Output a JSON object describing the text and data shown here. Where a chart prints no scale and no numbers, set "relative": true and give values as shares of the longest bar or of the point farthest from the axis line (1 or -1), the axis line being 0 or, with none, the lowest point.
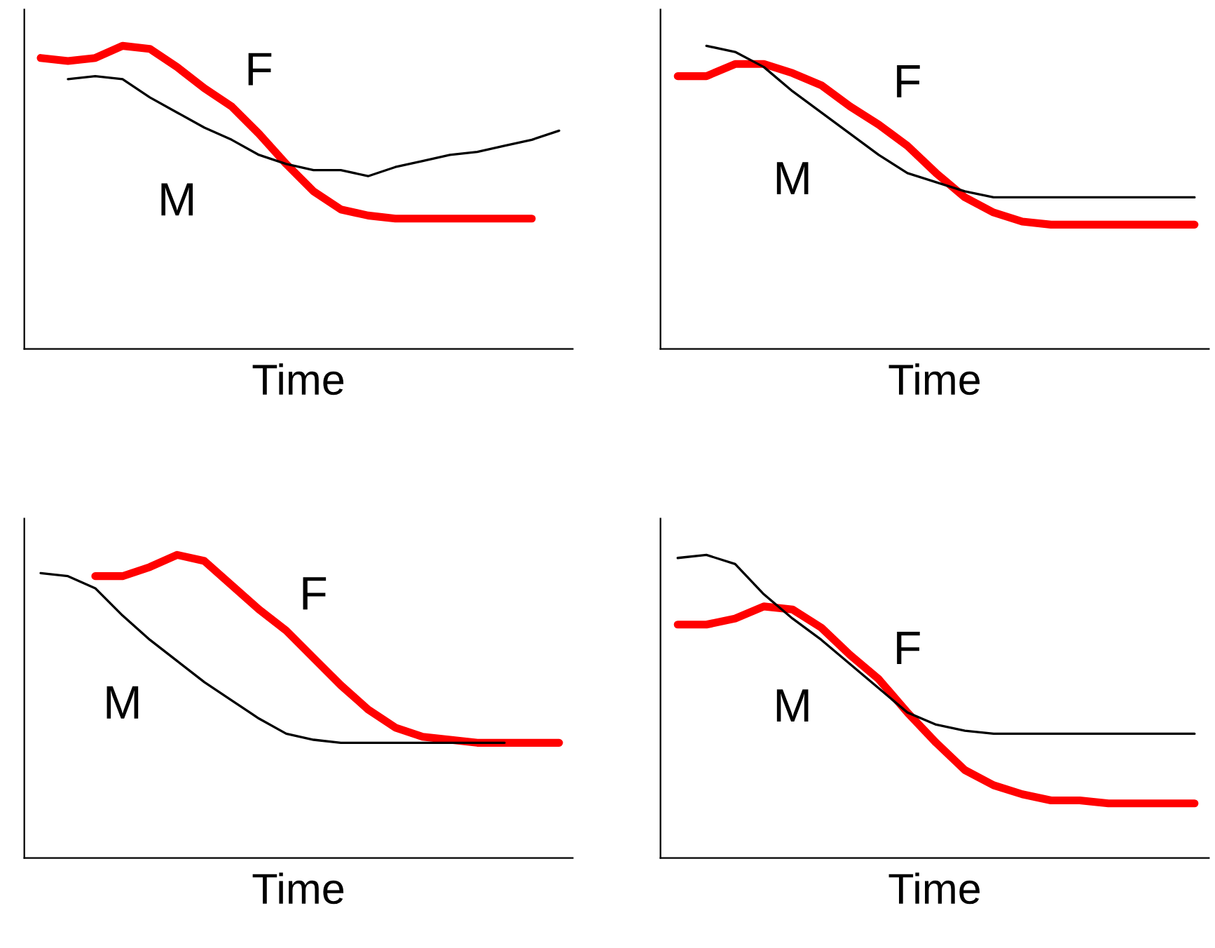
{
  "chart_data": [
    {
      "type": "line",
      "relative": true,
      "xlabel": "Time",
      "categories": [
        null,
        null,
        null,
        null,
        null,
        null,
        null,
        null,
        null,
        null,
        null,
        null,
        null,
        null,
        null,
        null,
        null,
        null,
        null,
        null
      ],
      "series": [
        {
          "name": "F",
          "color": "#ff0000",
          "values": [
            0.96,
            0.95,
            0.96,
            1.0,
            0.99,
            0.93,
            0.86,
            0.8,
            0.71,
            0.61,
            0.52,
            0.46,
            0.44,
            0.43,
            0.43,
            0.43,
            0.43,
            0.43,
            0.43,
            null
          ]
        },
        {
          "name": "M",
          "color": "#000000",
          "values": [
            null,
            0.89,
            0.9,
            0.89,
            0.83,
            0.78,
            0.73,
            0.69,
            0.64,
            0.61,
            0.59,
            0.59,
            0.57,
            0.6,
            0.62,
            0.64,
            0.65,
            0.67,
            0.69,
            0.72
          ]
        }
      ]
    },
    {
      "type": "line",
      "relative": true,
      "xlabel": "Time",
      "categories": [
        null,
        null,
        null,
        null,
        null,
        null,
        null,
        null,
        null,
        null,
        null,
        null,
        null,
        null,
        null,
        null,
        null,
        null,
        null
      ],
      "series": [
        {
          "name": "F",
          "color": "#ff0000",
          "values": [
            0.9,
            0.9,
            0.94,
            0.94,
            0.91,
            0.87,
            0.8,
            0.74,
            0.67,
            0.58,
            0.5,
            0.45,
            0.42,
            0.41,
            0.41,
            0.41,
            0.41,
            0.41,
            0.41
          ]
        },
        {
          "name": "M",
          "color": "#000000",
          "values": [
            null,
            1.0,
            0.98,
            0.93,
            0.85,
            0.78,
            0.71,
            0.64,
            0.58,
            0.55,
            0.52,
            0.5,
            0.5,
            0.5,
            0.5,
            0.5,
            0.5,
            0.5,
            0.5
          ]
        }
      ]
    },
    {
      "type": "line",
      "relative": true,
      "xlabel": "Time",
      "categories": [
        null,
        null,
        null,
        null,
        null,
        null,
        null,
        null,
        null,
        null,
        null,
        null,
        null,
        null,
        null,
        null,
        null,
        null,
        null,
        null
      ],
      "series": [
        {
          "name": "F",
          "color": "#ff0000",
          "values": [
            null,
            null,
            0.93,
            0.93,
            0.96,
            1.0,
            0.98,
            0.9,
            0.82,
            0.75,
            0.66,
            0.57,
            0.49,
            0.43,
            0.4,
            0.39,
            0.38,
            0.38,
            0.38,
            0.38
          ]
        },
        {
          "name": "M",
          "color": "#000000",
          "values": [
            0.94,
            0.93,
            0.89,
            0.8,
            0.72,
            0.65,
            0.58,
            0.52,
            0.46,
            0.41,
            0.39,
            0.38,
            0.38,
            0.38,
            0.38,
            0.38,
            0.38,
            0.38,
            null,
            null
          ]
        }
      ]
    },
    {
      "type": "line",
      "relative": true,
      "xlabel": "Time",
      "categories": [
        null,
        null,
        null,
        null,
        null,
        null,
        null,
        null,
        null,
        null,
        null,
        null,
        null,
        null,
        null,
        null,
        null,
        null,
        null
      ],
      "series": [
        {
          "name": "F",
          "color": "#ff0000",
          "values": [
            0.77,
            0.77,
            0.79,
            0.83,
            0.82,
            0.76,
            0.67,
            0.59,
            0.48,
            0.38,
            0.29,
            0.24,
            0.21,
            0.19,
            0.19,
            0.18,
            0.18,
            0.18,
            0.18
          ]
        },
        {
          "name": "M",
          "color": "#000000",
          "values": [
            0.99,
            1.0,
            0.97,
            0.87,
            0.79,
            0.72,
            0.64,
            0.56,
            0.48,
            0.44,
            0.42,
            0.41,
            0.41,
            0.41,
            0.41,
            0.41,
            0.41,
            0.41,
            0.41
          ]
        }
      ]
    }
  ]
}
